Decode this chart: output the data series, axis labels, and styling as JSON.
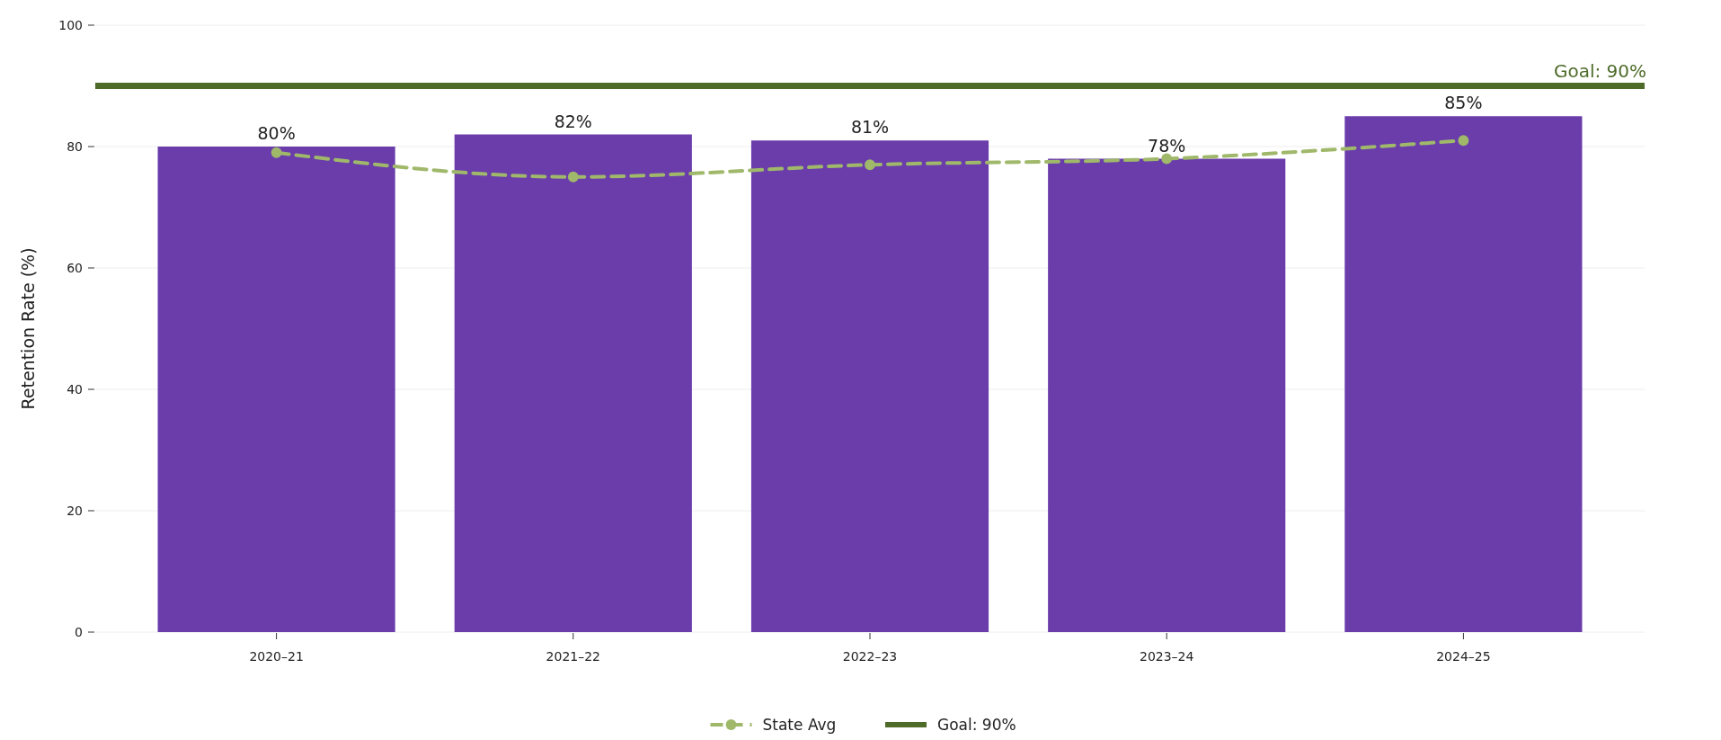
{
  "chart_data": {
    "type": "bar",
    "ylabel": "Retention Rate (%)",
    "categories": [
      "2020–21",
      "2021–22",
      "2022–23",
      "2023–24",
      "2024–25"
    ],
    "series": [
      {
        "color": "#6a3dab",
        "values": [
          80,
          82,
          81,
          78,
          85
        ],
        "value_labels": [
          "80%",
          "82%",
          "81%",
          "78%",
          "85%"
        ]
      },
      {
        "type": "line",
        "name": "State Avg",
        "color": "#9fb86a",
        "values": [
          79,
          75,
          77,
          78,
          81
        ],
        "marker": "circle",
        "line_style": "dashed"
      }
    ],
    "ref_lines": [
      {
        "axis": "y",
        "value": 90,
        "label": "Goal: 90%",
        "color": "#4e6b2a",
        "line_style": "solid"
      }
    ],
    "ylim": [
      0,
      100
    ],
    "yticks": [
      0,
      20,
      40,
      60,
      80,
      100
    ],
    "grid": "y",
    "legend": "bottom"
  }
}
